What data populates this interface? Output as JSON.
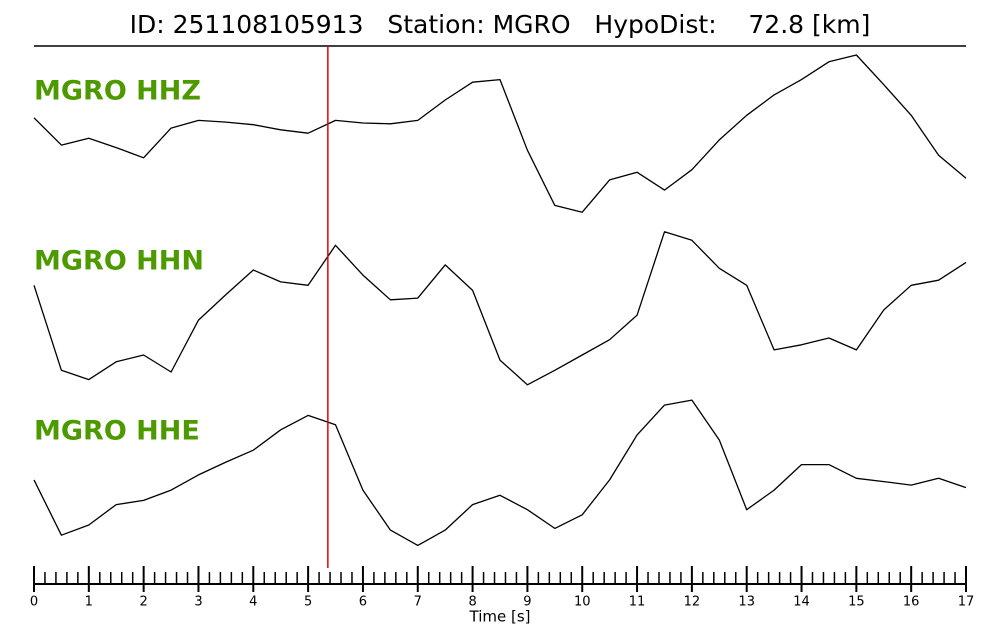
{
  "chart_data": {
    "type": "line",
    "title": "ID: 251108105913   Station: MGRO   HypoDist:    72.8 [km]",
    "xlabel": "Time [s]",
    "x": [
      0,
      0.5,
      1,
      1.5,
      2,
      2.5,
      3,
      3.5,
      4,
      4.5,
      5,
      5.5,
      6,
      6.5,
      7,
      7.5,
      8,
      8.5,
      9,
      9.5,
      10,
      10.5,
      11,
      11.5,
      12,
      12.5,
      13,
      13.5,
      14,
      14.5,
      15,
      15.5,
      16,
      16.5,
      17
    ],
    "xlim": [
      0,
      17
    ],
    "xticks": [
      0,
      1,
      2,
      3,
      4,
      5,
      6,
      7,
      8,
      9,
      10,
      11,
      12,
      13,
      14,
      15,
      16,
      17
    ],
    "xminorticks": [
      0.2,
      0.4,
      0.6,
      0.8,
      1.2,
      1.4,
      1.6,
      1.8,
      2.2,
      2.4,
      2.6,
      2.8,
      3.2,
      3.4,
      3.6,
      3.8,
      4.2,
      4.4,
      4.6,
      4.8,
      5.2,
      5.4,
      5.6,
      5.8,
      6.2,
      6.4,
      6.6,
      6.8,
      7.2,
      7.4,
      7.6,
      7.8,
      8.2,
      8.4,
      8.6,
      8.8,
      9.2,
      9.4,
      9.6,
      9.8,
      10.2,
      10.4,
      10.6,
      10.8,
      11.2,
      11.4,
      11.6,
      11.8,
      12.2,
      12.4,
      12.6,
      12.8,
      13.2,
      13.4,
      13.6,
      13.8,
      14.2,
      14.4,
      14.6,
      14.8,
      15.2,
      15.4,
      15.6,
      15.8,
      16.2,
      16.4,
      16.6,
      16.8
    ],
    "ylim": [
      -1,
      1
    ],
    "pick": 5.36,
    "pick_color": "#e8000b",
    "label_color": "#4c9a00",
    "series": [
      {
        "name": "MGRO HHZ",
        "color": "#000000",
        "values": [
          0.19,
          -0.13,
          -0.05,
          -0.16,
          -0.28,
          0.07,
          0.16,
          0.14,
          0.11,
          0.05,
          0.01,
          0.16,
          0.13,
          0.12,
          0.16,
          0.4,
          0.61,
          0.64,
          -0.19,
          -0.84,
          -0.92,
          -0.54,
          -0.45,
          -0.66,
          -0.42,
          -0.07,
          0.22,
          0.46,
          0.64,
          0.85,
          0.93,
          0.58,
          0.22,
          -0.25,
          -0.52
        ]
      },
      {
        "name": "MGRO HHN",
        "color": "#000000",
        "values": [
          0.22,
          -0.78,
          -0.89,
          -0.68,
          -0.6,
          -0.8,
          -0.19,
          0.11,
          0.4,
          0.26,
          0.22,
          0.69,
          0.34,
          0.05,
          0.07,
          0.46,
          0.16,
          -0.66,
          -0.95,
          -0.78,
          -0.6,
          -0.42,
          -0.13,
          0.85,
          0.75,
          0.42,
          0.22,
          -0.54,
          -0.48,
          -0.4,
          -0.54,
          -0.07,
          0.22,
          0.28,
          0.49
        ]
      },
      {
        "name": "MGRO HHE",
        "color": "#000000",
        "values": [
          -0.07,
          -0.72,
          -0.6,
          -0.36,
          -0.31,
          -0.19,
          -0.01,
          0.14,
          0.28,
          0.52,
          0.69,
          0.58,
          -0.19,
          -0.66,
          -0.84,
          -0.66,
          -0.36,
          -0.25,
          -0.42,
          -0.64,
          -0.48,
          -0.07,
          0.46,
          0.81,
          0.87,
          0.4,
          -0.42,
          -0.19,
          0.11,
          0.11,
          -0.05,
          -0.09,
          -0.13,
          -0.05,
          -0.16
        ]
      }
    ]
  }
}
